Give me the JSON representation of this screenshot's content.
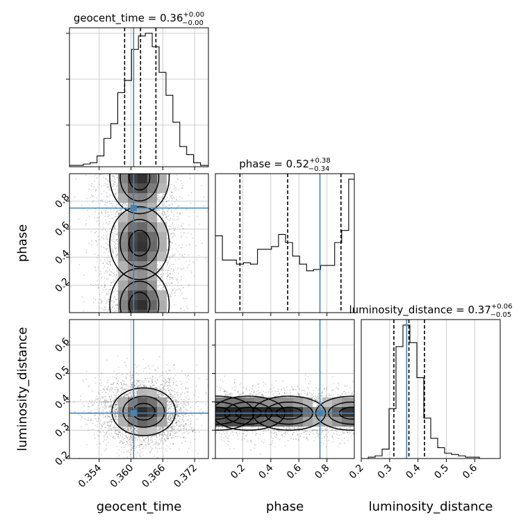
{
  "chart_data": {
    "type": "corner",
    "parameters": [
      "geocent_time",
      "phase",
      "luminosity_distance"
    ],
    "axis_labels": [
      "geocent_time",
      "phase",
      "luminosity_distance"
    ],
    "titles": [
      {
        "param": "geocent_time",
        "text": "geocent_time = 0.36",
        "sup": "+0.00",
        "sub": "−0.00"
      },
      {
        "param": "phase",
        "text": "phase = 0.52",
        "sup": "+0.38",
        "sub": "−0.34"
      },
      {
        "param": "luminosity_distance",
        "text": "luminosity_distance = 0.37",
        "sup": "+0.06",
        "sub": "−0.05"
      }
    ],
    "ranges": {
      "geocent_time": [
        0.3484,
        0.3746
      ],
      "phase": [
        0.005,
        0.995
      ],
      "luminosity_distance": [
        0.2,
        0.69
      ]
    },
    "ticks": {
      "geocent_time": [
        0.354,
        0.36,
        0.366,
        0.372
      ],
      "phase": [
        0.2,
        0.4,
        0.6,
        0.8
      ],
      "luminosity_distance": [
        0.2,
        0.3,
        0.4,
        0.5,
        0.6
      ]
    },
    "tick_labels": {
      "geocent_time": [
        "0.354",
        "0.360",
        "0.366",
        "0.372"
      ],
      "phase": [
        "0.2",
        "0.4",
        "0.6",
        "0.8"
      ],
      "luminosity_distance": [
        "0.2",
        "0.3",
        "0.4",
        "0.5",
        "0.6"
      ]
    },
    "truths": {
      "geocent_time": 0.3605,
      "phase": 0.75,
      "luminosity_distance": 0.36
    },
    "quantiles": {
      "geocent_time": [
        0.3588,
        0.3618,
        0.3647
      ],
      "phase": [
        0.18,
        0.52,
        0.9
      ],
      "luminosity_distance": [
        0.315,
        0.368,
        0.423
      ]
    },
    "histograms": {
      "geocent_time": {
        "bin_edges": [
          0.3484,
          0.3497,
          0.351,
          0.3523,
          0.3536,
          0.3549,
          0.3562,
          0.3575,
          0.3588,
          0.3601,
          0.3614,
          0.3627,
          0.364,
          0.3653,
          0.3666,
          0.3679,
          0.3692,
          0.3705,
          0.3718,
          0.3731,
          0.3746
        ],
        "counts": [
          0.01,
          0.01,
          0.02,
          0.03,
          0.08,
          0.21,
          0.32,
          0.55,
          0.64,
          0.87,
          0.97,
          0.99,
          0.89,
          0.7,
          0.53,
          0.33,
          0.15,
          0.09,
          0.03,
          0.01
        ]
      },
      "phase": {
        "bin_edges": [
          0.005,
          0.055,
          0.105,
          0.155,
          0.205,
          0.255,
          0.305,
          0.355,
          0.405,
          0.455,
          0.505,
          0.555,
          0.605,
          0.655,
          0.705,
          0.755,
          0.805,
          0.855,
          0.905,
          0.955,
          0.995
        ],
        "counts": [
          0.57,
          0.39,
          0.39,
          0.36,
          0.37,
          0.36,
          0.47,
          0.47,
          0.49,
          0.58,
          0.52,
          0.42,
          0.36,
          0.31,
          0.32,
          0.35,
          0.35,
          0.52,
          0.61,
          0.99
        ]
      },
      "luminosity_distance": {
        "bin_edges": [
          0.2,
          0.2245,
          0.249,
          0.2735,
          0.298,
          0.3225,
          0.347,
          0.3715,
          0.396,
          0.4205,
          0.445,
          0.4695,
          0.494,
          0.5185,
          0.543,
          0.5675,
          0.592,
          0.6165,
          0.641,
          0.6655,
          0.69
        ],
        "counts": [
          0.0,
          0.01,
          0.02,
          0.07,
          0.37,
          0.83,
          0.99,
          0.86,
          0.6,
          0.3,
          0.15,
          0.08,
          0.04,
          0.03,
          0.02,
          0.01,
          0.01,
          0.0,
          0.0,
          0.0
        ]
      }
    },
    "density_centers": {
      "geocent_time|phase": [
        [
          0.3616,
          0.97
        ],
        [
          0.3616,
          0.5
        ],
        [
          0.3616,
          0.06
        ]
      ],
      "geocent_time|luminosity_distance": [
        [
          0.3624,
          0.365
        ]
      ],
      "phase|luminosity_distance": [
        [
          0.02,
          0.36
        ],
        [
          0.24,
          0.36
        ],
        [
          0.53,
          0.36
        ],
        [
          0.98,
          0.36
        ]
      ]
    },
    "colors": {
      "truth": "#4682b4",
      "line": "#000000",
      "grid": "#c0c0c0",
      "density_dark": "#262626"
    },
    "grid": true
  }
}
